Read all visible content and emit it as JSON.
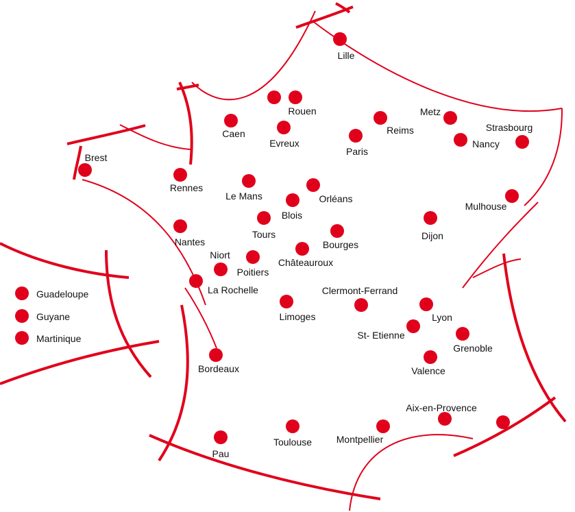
{
  "colors": {
    "accent": "#e0001b",
    "text": "#111111",
    "background": "#ffffff"
  },
  "cities": [
    {
      "id": "lille",
      "label": "Lille"
    },
    {
      "id": "rouen",
      "label": "Rouen"
    },
    {
      "id": "caen",
      "label": "Caen"
    },
    {
      "id": "evreux",
      "label": "Evreux"
    },
    {
      "id": "reims",
      "label": "Reims"
    },
    {
      "id": "paris",
      "label": "Paris"
    },
    {
      "id": "metz",
      "label": "Metz"
    },
    {
      "id": "nancy",
      "label": "Nancy"
    },
    {
      "id": "strasbourg",
      "label": "Strasbourg"
    },
    {
      "id": "brest",
      "label": "Brest"
    },
    {
      "id": "rennes",
      "label": "Rennes"
    },
    {
      "id": "le-mans",
      "label": "Le Mans"
    },
    {
      "id": "orleans",
      "label": "Orléans"
    },
    {
      "id": "blois",
      "label": "Blois"
    },
    {
      "id": "tours",
      "label": "Tours"
    },
    {
      "id": "mulhouse",
      "label": "Mulhouse"
    },
    {
      "id": "dijon",
      "label": "Dijon"
    },
    {
      "id": "bourges",
      "label": "Bourges"
    },
    {
      "id": "nantes",
      "label": "Nantes"
    },
    {
      "id": "niort",
      "label": "Niort"
    },
    {
      "id": "poitiers",
      "label": "Poitiers"
    },
    {
      "id": "chateauroux",
      "label": "Châteauroux"
    },
    {
      "id": "la-rochelle",
      "label": "La Rochelle"
    },
    {
      "id": "clermont-ferrand",
      "label": "Clermont-Ferrand"
    },
    {
      "id": "limoges",
      "label": "Limoges"
    },
    {
      "id": "lyon",
      "label": "Lyon"
    },
    {
      "id": "st-etienne",
      "label": "St- Etienne"
    },
    {
      "id": "grenoble",
      "label": "Grenoble"
    },
    {
      "id": "bordeaux",
      "label": "Bordeaux"
    },
    {
      "id": "valence",
      "label": "Valence"
    },
    {
      "id": "aix-en-provence",
      "label": "Aix-en-Provence"
    },
    {
      "id": "montpellier",
      "label": "Montpellier"
    },
    {
      "id": "toulouse",
      "label": "Toulouse"
    },
    {
      "id": "pau",
      "label": "Pau"
    },
    {
      "id": "nice",
      "label": ""
    }
  ],
  "legend": [
    {
      "id": "guadeloupe",
      "label": "Guadeloupe"
    },
    {
      "id": "guyane",
      "label": "Guyane"
    },
    {
      "id": "martinique",
      "label": "Martinique"
    }
  ]
}
